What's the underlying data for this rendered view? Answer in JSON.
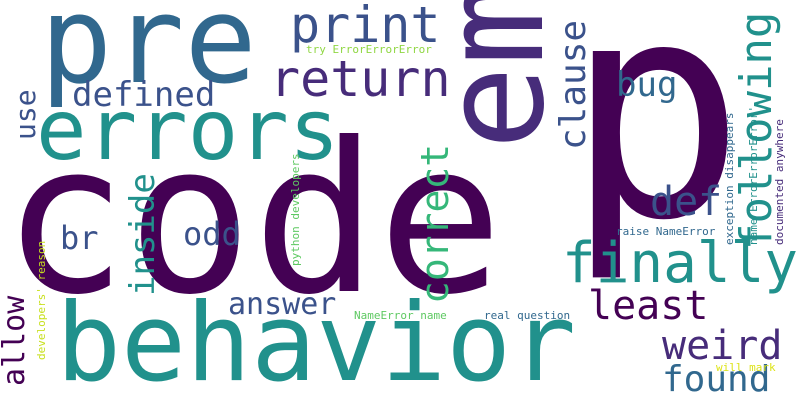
{
  "word_cloud": {
    "background": "#ffffff",
    "palette": [
      "#440154",
      "#472c7a",
      "#3b528b",
      "#31688e",
      "#21918c",
      "#35b779",
      "#5ec962",
      "#90d743",
      "#c8e020"
    ],
    "words": {
      "code": "code",
      "p": "p",
      "em": "em",
      "pre": "pre",
      "errors": "errors",
      "behavior": "behavior",
      "finally": "finally",
      "print": "print",
      "return": "return",
      "defined": "defined",
      "use": "use",
      "clause": "clause",
      "bug": "bug",
      "following": "following",
      "correct": "correct",
      "def": "def",
      "inside": "inside",
      "br": "br",
      "odd": "odd",
      "allow": "allow",
      "answer": "answer",
      "least": "least",
      "weird": "weird",
      "found": "found",
      "try_errors": "try ErrorErrorError",
      "exception_disappears": "exception disappears",
      "name_errorerror": "name ErrorErrorError'",
      "documented_anywhere": "documented anywhere",
      "python_developers": "python developers",
      "developers_reason": "developers' reason",
      "raise_nameerror": "raise NameError",
      "nameerror_name": "NameError name",
      "real_question": "real question",
      "will_mark": "will mark"
    }
  }
}
